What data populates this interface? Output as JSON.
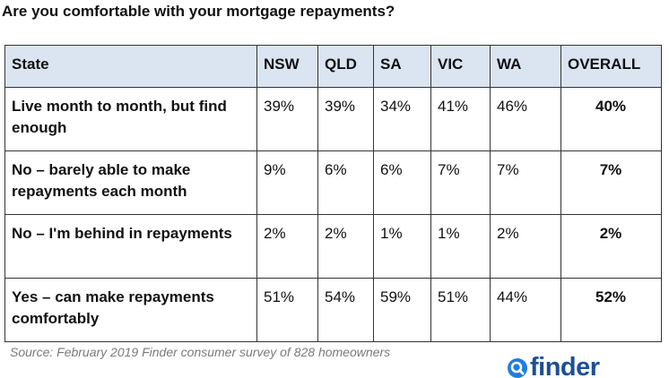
{
  "title": "Are you comfortable with your mortgage repayments?",
  "chart_data": {
    "type": "table",
    "title": "Are you comfortable with your mortgage repayments?",
    "columns": [
      "State",
      "NSW",
      "QLD",
      "SA",
      "VIC",
      "WA",
      "OVERALL"
    ],
    "rows": [
      {
        "label": "Live month to month, but find enough",
        "values": [
          "39%",
          "39%",
          "34%",
          "41%",
          "46%",
          "40%"
        ]
      },
      {
        "label": "No – barely able to make repayments each month",
        "values": [
          "9%",
          "6%",
          "6%",
          "7%",
          "7%",
          "7%"
        ]
      },
      {
        "label": "No – I'm behind in repayments",
        "values": [
          "2%",
          "2%",
          "1%",
          "1%",
          "2%",
          "2%"
        ]
      },
      {
        "label": "Yes – can make repayments comfortably",
        "values": [
          "51%",
          "54%",
          "59%",
          "51%",
          "44%",
          "52%"
        ]
      }
    ],
    "header_color": "#dbe4f1"
  },
  "source": "Source: February 2019 Finder consumer survey of 828 homeowners",
  "logo": {
    "text": "finder",
    "icon": "magnifier-icon",
    "color": "#1e4f91",
    "icon_color": "#1e7de0"
  }
}
